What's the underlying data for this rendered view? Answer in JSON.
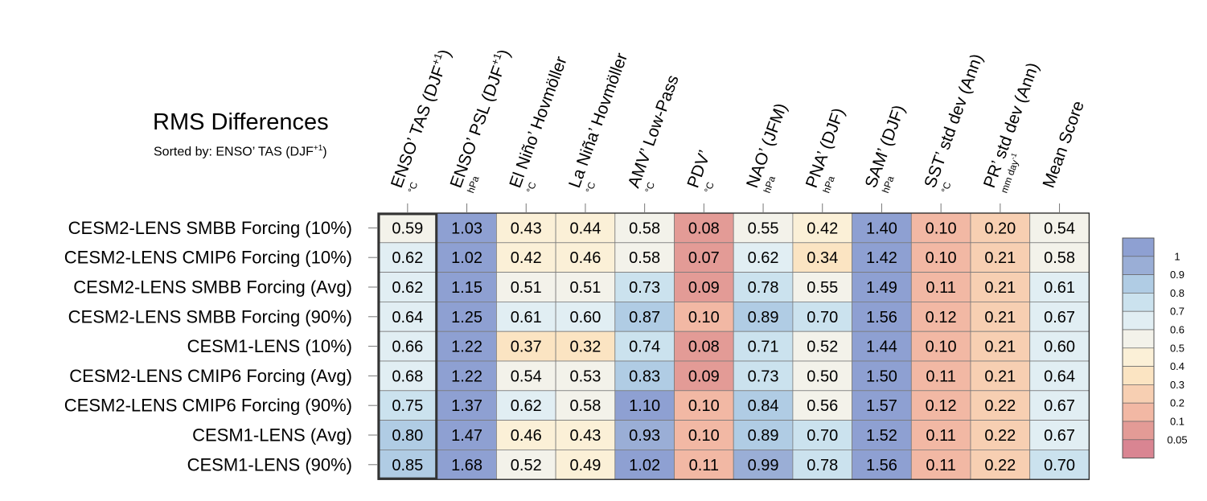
{
  "title": "RMS Differences",
  "subtitle_prefix": "Sorted by: ENSO’ TAS (DJF",
  "subtitle_sup": "+1",
  "subtitle_suffix": ")",
  "chart_data": {
    "type": "heatmap",
    "title": "RMS Differences",
    "subtitle": "Sorted by: ENSO’ TAS (DJF+1)",
    "columns": [
      {
        "label": "ENSO’ TAS (DJF",
        "sup": "+1",
        "label_end": ")",
        "unit": "°C"
      },
      {
        "label": "ENSO’ PSL (DJF",
        "sup": "+1",
        "label_end": ")",
        "unit": "hPa"
      },
      {
        "label": "El Niño’ Hovmöller",
        "unit": "°C"
      },
      {
        "label": "La Niña’ Hovmöller",
        "unit": "°C"
      },
      {
        "label": "AMV’ Low-Pass",
        "unit": "°C"
      },
      {
        "label": "PDV’",
        "unit": "°C"
      },
      {
        "label": "NAO’ (JFM)",
        "unit": "hPa"
      },
      {
        "label": "PNA’ (DJF)",
        "unit": "hPa"
      },
      {
        "label": "SAM’ (DJF)",
        "unit": "hPa"
      },
      {
        "label": "SST’ std dev (Ann)",
        "unit": "°C"
      },
      {
        "label": "PR’ std dev (Ann)",
        "unit": "mm day",
        "unit_sup": "-1"
      },
      {
        "label": "Mean Score",
        "unit": ""
      }
    ],
    "rows": [
      "CESM2-LENS SMBB Forcing (10%)",
      "CESM2-LENS CMIP6 Forcing (10%)",
      "CESM2-LENS SMBB Forcing (Avg)",
      "CESM2-LENS SMBB Forcing (90%)",
      "CESM1-LENS (10%)",
      "CESM2-LENS CMIP6 Forcing (Avg)",
      "CESM2-LENS CMIP6 Forcing (90%)",
      "CESM1-LENS (Avg)",
      "CESM1-LENS (90%)"
    ],
    "values": [
      [
        "0.59",
        "1.03",
        "0.43",
        "0.44",
        "0.58",
        "0.08",
        "0.55",
        "0.42",
        "1.40",
        "0.10",
        "0.20",
        "0.54"
      ],
      [
        "0.62",
        "1.02",
        "0.42",
        "0.46",
        "0.58",
        "0.07",
        "0.62",
        "0.34",
        "1.42",
        "0.10",
        "0.21",
        "0.58"
      ],
      [
        "0.62",
        "1.15",
        "0.51",
        "0.51",
        "0.73",
        "0.09",
        "0.78",
        "0.55",
        "1.49",
        "0.11",
        "0.21",
        "0.61"
      ],
      [
        "0.64",
        "1.25",
        "0.61",
        "0.60",
        "0.87",
        "0.10",
        "0.89",
        "0.70",
        "1.56",
        "0.12",
        "0.21",
        "0.67"
      ],
      [
        "0.66",
        "1.22",
        "0.37",
        "0.32",
        "0.74",
        "0.08",
        "0.71",
        "0.52",
        "1.44",
        "0.10",
        "0.21",
        "0.60"
      ],
      [
        "0.68",
        "1.22",
        "0.54",
        "0.53",
        "0.83",
        "0.09",
        "0.73",
        "0.50",
        "1.50",
        "0.11",
        "0.21",
        "0.64"
      ],
      [
        "0.75",
        "1.37",
        "0.62",
        "0.58",
        "1.10",
        "0.10",
        "0.84",
        "0.56",
        "1.57",
        "0.12",
        "0.22",
        "0.67"
      ],
      [
        "0.80",
        "1.47",
        "0.46",
        "0.43",
        "0.93",
        "0.10",
        "0.89",
        "0.70",
        "1.52",
        "0.11",
        "0.22",
        "0.67"
      ],
      [
        "0.85",
        "1.68",
        "0.52",
        "0.49",
        "1.02",
        "0.11",
        "0.99",
        "0.78",
        "1.56",
        "0.11",
        "0.22",
        "0.70"
      ]
    ],
    "highlighted_column": 0,
    "colorbar": {
      "labels": [
        "1",
        "0.9",
        "0.8",
        "0.7",
        "0.6",
        "0.5",
        "0.4",
        "0.3",
        "0.2",
        "0.1",
        "0.05"
      ],
      "bounds": [
        0.05,
        0.1,
        0.2,
        0.3,
        0.4,
        0.5,
        0.6,
        0.7,
        0.8,
        0.9,
        1
      ],
      "colors": [
        "#d98592",
        "#e39b96",
        "#f2b8a4",
        "#f7cfb2",
        "#fbe4c2",
        "#fbf0d7",
        "#f3f2ea",
        "#e1eef3",
        "#cbe2ee",
        "#b0cce4",
        "#9aaed6",
        "#8ea0d2"
      ]
    }
  }
}
